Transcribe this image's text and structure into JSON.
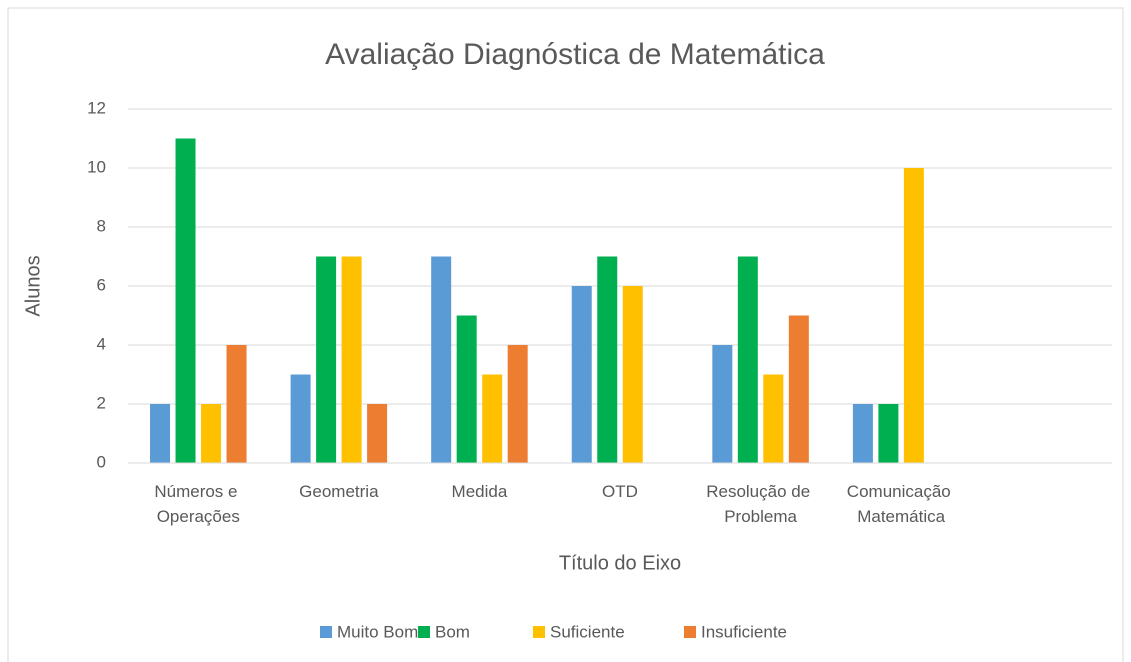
{
  "chart_data": {
    "type": "bar",
    "title": "Avaliação Diagnóstica de Matemática",
    "x_label": "Título do Eixo",
    "y_label": "Alunos",
    "categories": [
      "Números e Operações",
      "Geometria",
      "Medida",
      "OTD",
      "Resolução de Problema",
      "Comunicação Matemática",
      null
    ],
    "series": [
      {
        "name": "Muito Bom",
        "color": "#5b9bd5",
        "values": [
          2,
          3,
          7,
          6,
          4,
          2,
          null
        ]
      },
      {
        "name": "Bom",
        "color": "#00b050",
        "values": [
          11,
          7,
          5,
          7,
          7,
          2,
          null
        ]
      },
      {
        "name": "Suficiente",
        "color": "#ffc000",
        "values": [
          2,
          7,
          3,
          6,
          3,
          10,
          null
        ]
      },
      {
        "name": "Insuficiente",
        "color": "#ed7d31",
        "values": [
          4,
          2,
          4,
          0,
          5,
          0,
          null
        ]
      }
    ],
    "ylim": [
      0,
      12
    ],
    "yticks": [
      0,
      2,
      4,
      6,
      8,
      10,
      12
    ],
    "grid": true,
    "legend": "bottom"
  }
}
